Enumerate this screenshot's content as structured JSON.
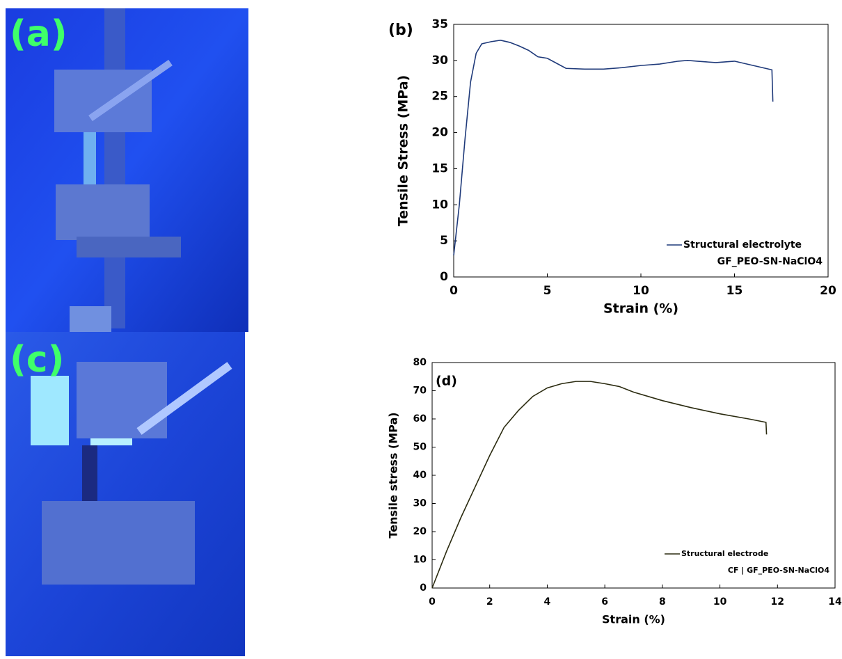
{
  "panels": [
    {
      "label": "(a)"
    },
    {
      "label": "(c)"
    }
  ],
  "chart_data": [
    {
      "type": "line",
      "label": "(b)",
      "x_label": "Strain (%)",
      "y_label": "Tensile Stress  (MPa)",
      "xlim": [
        0,
        20
      ],
      "xticks": [
        0,
        5,
        10,
        15,
        20
      ],
      "ylim": [
        0,
        35
      ],
      "yticks": [
        0,
        5,
        10,
        15,
        20,
        25,
        30,
        35
      ],
      "legend": "lower right",
      "legend_note": "GF_PEO-SN-NaClO4",
      "x": [
        0,
        0.3,
        0.6,
        0.9,
        1.2,
        1.5,
        2,
        2.5,
        3,
        3.5,
        4,
        4.5,
        5,
        5.5,
        6,
        7,
        8,
        9,
        10,
        11,
        12,
        12.5,
        13,
        14,
        15,
        16,
        17,
        17.05
      ],
      "series": [
        {
          "name": "Structural electrolyte",
          "color": "#1f3a7a",
          "values": [
            3,
            10,
            19,
            27,
            31,
            32.3,
            32.6,
            32.8,
            32.5,
            32,
            31.4,
            30.5,
            30.3,
            29.6,
            28.9,
            28.8,
            28.8,
            29,
            29.3,
            29.5,
            29.9,
            30,
            29.9,
            29.7,
            29.9,
            29.3,
            28.7,
            24.3
          ]
        }
      ]
    },
    {
      "type": "line",
      "label": "(d)",
      "x_label": "Strain (%)",
      "y_label": "Tensile stress (MPa)",
      "xlim": [
        0,
        14
      ],
      "xticks": [
        0,
        2,
        4,
        6,
        8,
        10,
        12,
        14
      ],
      "ylim": [
        0,
        80
      ],
      "yticks": [
        0,
        10,
        20,
        30,
        40,
        50,
        60,
        70,
        80
      ],
      "legend": "lower right",
      "legend_note": "CF | GF_PEO-SN-NaClO4",
      "x": [
        0,
        0.5,
        1,
        1.5,
        2,
        2.5,
        3,
        3.5,
        4,
        4.5,
        5,
        5.5,
        6,
        6.5,
        7,
        8,
        9,
        10,
        11,
        11.6,
        11.62
      ],
      "series": [
        {
          "name": "Structural electrode",
          "color": "#2b2b10",
          "values": [
            0,
            13,
            25,
            36,
            47,
            57,
            63,
            68,
            71,
            72.5,
            73.3,
            73.3,
            72.5,
            71.5,
            69.5,
            66.5,
            64,
            61.8,
            60,
            58.8,
            54.5
          ]
        }
      ]
    }
  ]
}
